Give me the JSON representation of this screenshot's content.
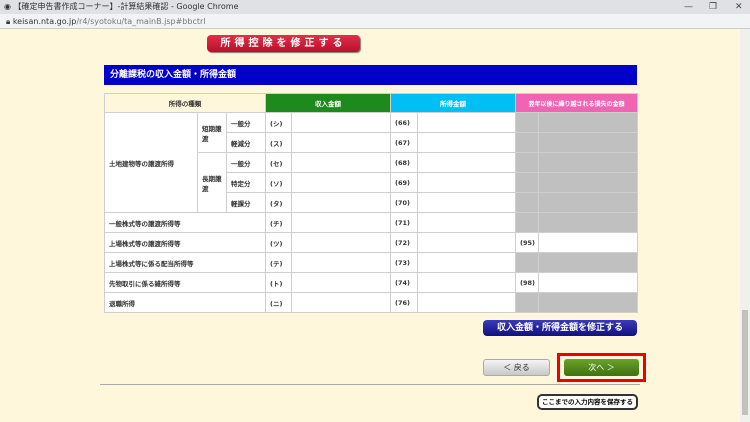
{
  "window": {
    "title": "【確定申告書作成コーナー】-計算結果確認 - Google Chrome",
    "url_host": "keisan.nta.go.jp",
    "url_path": "/r4/syotoku/ta_mainB.jsp#bbctrl"
  },
  "buttons": {
    "fix_deduction": "所得控除を修正する",
    "fix_amounts": "収入金額・所得金額を修正する",
    "back": "＜ 戻る",
    "next": "次へ ＞",
    "save": "ここまでの入力内容を保存する"
  },
  "section_title": "分離課税の収入金額・所得金額",
  "colors": {
    "heading": "#0000c8",
    "income_header": "#1e8a1e",
    "profit_header": "#00bff5",
    "loss_header": "#f064b4",
    "highlight": "#ee0000"
  },
  "table": {
    "headers": [
      "所得の種類",
      "収入金額",
      "所得金額",
      "翌年以後に繰り越される損失の金額"
    ],
    "land": {
      "label": "土地建物等の譲渡所得",
      "short": "短期譲渡",
      "long": "長期譲渡"
    },
    "land_rows": [
      {
        "sub": "一般分",
        "code1": "(シ)",
        "code2": "(66)"
      },
      {
        "sub": "軽減分",
        "code1": "(ス)",
        "code2": "(67)"
      },
      {
        "sub": "一般分",
        "code1": "(セ)",
        "code2": "(68)"
      },
      {
        "sub": "特定分",
        "code1": "(ソ)",
        "code2": "(69)"
      },
      {
        "sub": "軽課分",
        "code1": "(タ)",
        "code2": "(70)"
      }
    ],
    "rows": [
      {
        "label": "一般株式等の譲渡所得等",
        "code1": "(チ)",
        "code2": "(71)",
        "code3": ""
      },
      {
        "label": "上場株式等の譲渡所得等",
        "code1": "(ツ)",
        "code2": "(72)",
        "code3": "(95)"
      },
      {
        "label": "上場株式等に係る配当所得等",
        "code1": "(テ)",
        "code2": "(73)",
        "code3": ""
      },
      {
        "label": "先物取引に係る雑所得等",
        "code1": "(ト)",
        "code2": "(74)",
        "code3": "(98)"
      },
      {
        "label": "退職所得",
        "code1": "(ニ)",
        "code2": "(76)",
        "code3": ""
      }
    ]
  }
}
